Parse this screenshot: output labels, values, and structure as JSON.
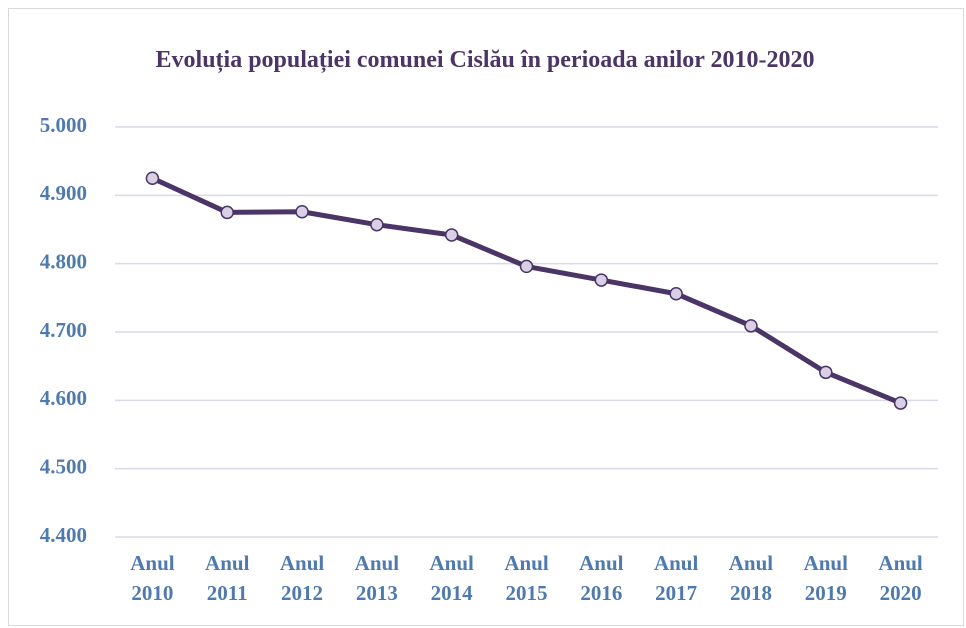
{
  "chart_data": {
    "type": "line",
    "title": "Evoluția populației comunei Cislău în perioada anilor 2010-2020",
    "categories": [
      "Anul 2010",
      "Anul 2011",
      "Anul 2012",
      "Anul 2013",
      "Anul 2014",
      "Anul 2015",
      "Anul 2016",
      "Anul 2017",
      "Anul 2018",
      "Anul 2019",
      "Anul 2020"
    ],
    "series": [
      {
        "color": "#4a3566",
        "marker_color": "#d9d0e6",
        "values": [
          4925,
          4875,
          4876,
          4857,
          4842,
          4796,
          4776,
          4756,
          4709,
          4641,
          4596
        ]
      }
    ],
    "ylim": [
      4400,
      5000
    ],
    "yticks": [
      {
        "value": 4400,
        "label": "4.400"
      },
      {
        "value": 4500,
        "label": "4.500"
      },
      {
        "value": 4600,
        "label": "4.600"
      },
      {
        "value": 4700,
        "label": "4.700"
      },
      {
        "value": 4800,
        "label": "4.800"
      },
      {
        "value": 4900,
        "label": "4.900"
      },
      {
        "value": 5000,
        "label": "5.000"
      }
    ],
    "grid": true
  }
}
